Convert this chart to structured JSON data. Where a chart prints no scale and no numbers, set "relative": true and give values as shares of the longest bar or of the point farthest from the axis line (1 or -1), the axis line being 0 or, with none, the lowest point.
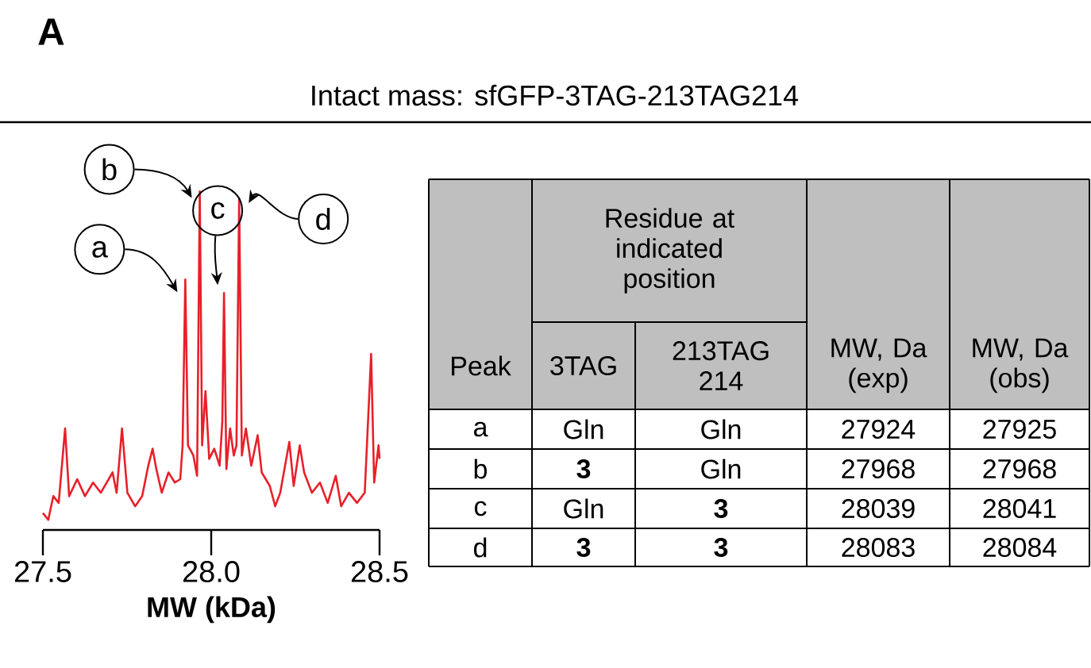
{
  "chart_data": {
    "type": "line",
    "title": "Intact mass: sfGFP-3TAG-213TAG214",
    "xlabel": "MW (kDa)",
    "relative": true,
    "color": "#e8202a",
    "xlim": [
      27.5,
      28.5
    ],
    "xticks": [
      27.5,
      {
        "value": 28,
        "label": "28.0"
      },
      28.5
    ],
    "x": [
      27.5,
      27.516,
      27.531,
      27.547,
      27.566,
      27.578,
      27.602,
      27.625,
      27.649,
      27.672,
      27.707,
      27.719,
      27.735,
      27.751,
      27.774,
      27.795,
      27.813,
      27.826,
      27.837,
      27.853,
      27.873,
      27.892,
      27.908,
      27.915,
      27.923,
      27.931,
      27.947,
      27.958,
      27.966,
      27.973,
      27.983,
      27.994,
      28.009,
      28.025,
      28.033,
      28.038,
      28.045,
      28.056,
      28.067,
      28.075,
      28.083,
      28.091,
      28.103,
      28.119,
      28.138,
      28.15,
      28.174,
      28.19,
      28.205,
      28.232,
      28.245,
      28.263,
      28.276,
      28.299,
      28.323,
      28.346,
      28.37,
      28.386,
      28.409,
      28.433,
      28.456,
      28.475,
      28.484,
      28.497,
      28.5
    ],
    "values": [
      0.05,
      0.03,
      0.1,
      0.08,
      0.3,
      0.1,
      0.15,
      0.1,
      0.14,
      0.11,
      0.17,
      0.11,
      0.3,
      0.11,
      0.07,
      0.1,
      0.19,
      0.24,
      0.18,
      0.11,
      0.17,
      0.14,
      0.15,
      0.25,
      0.74,
      0.25,
      0.22,
      0.16,
      1.0,
      0.25,
      0.41,
      0.21,
      0.24,
      0.19,
      0.32,
      0.7,
      0.18,
      0.3,
      0.22,
      0.25,
      0.98,
      0.22,
      0.3,
      0.19,
      0.28,
      0.17,
      0.13,
      0.07,
      0.11,
      0.26,
      0.13,
      0.25,
      0.17,
      0.11,
      0.14,
      0.08,
      0.16,
      0.07,
      0.11,
      0.08,
      0.11,
      0.52,
      0.14,
      0.25,
      0.21
    ],
    "annotations": [
      "A",
      "Residue at indicated position",
      "Peak",
      "3TAG",
      "213TAG 214",
      "MW, Da (exp)",
      "MW, Da (obs)",
      "a",
      "Gln",
      "Gln",
      "27924",
      "27925",
      "b",
      "**3**",
      "Gln",
      "27968",
      "27968",
      "c",
      "Gln",
      "**3**",
      "28039",
      "28041",
      "d",
      "**3**",
      "**3**",
      "28083",
      "28084",
      {
        "text": "a",
        "x": 27.923,
        "y": 0.74
      },
      {
        "text": "b",
        "x": 27.966,
        "y": 1.0
      },
      {
        "text": "c",
        "x": 28.038,
        "y": 0.7
      },
      {
        "text": "d",
        "x": 28.083,
        "y": 0.98
      }
    ]
  }
}
